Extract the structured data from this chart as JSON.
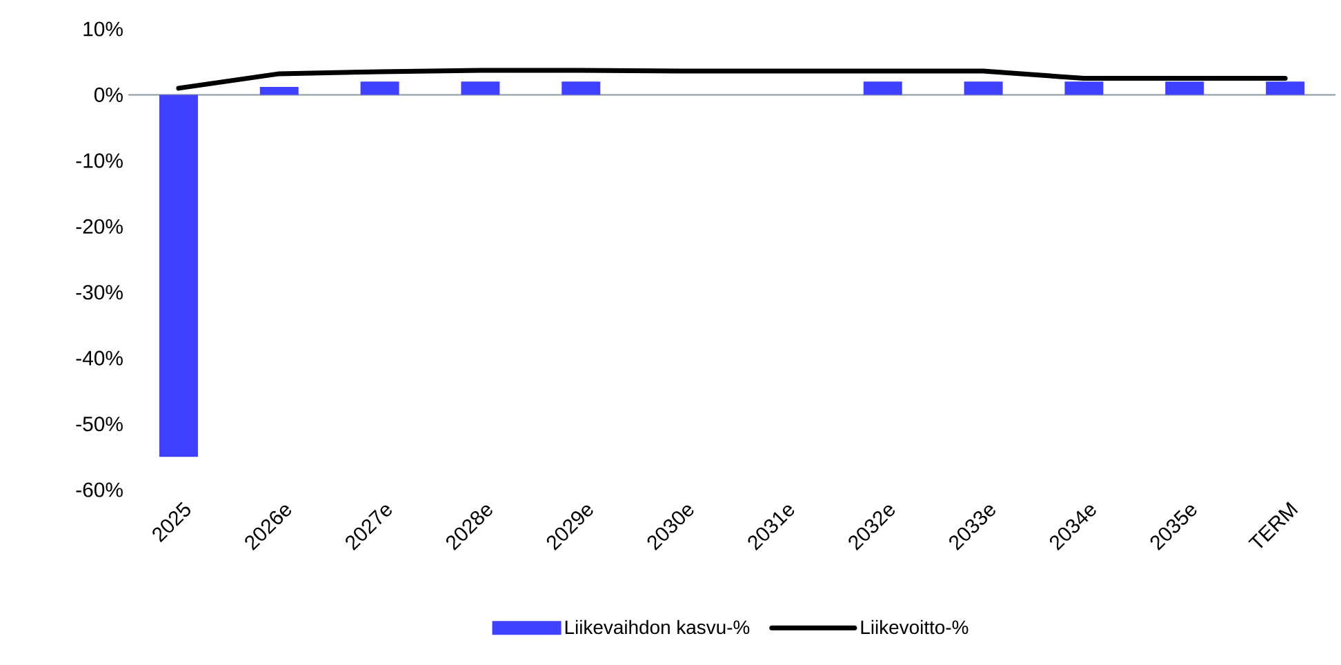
{
  "chart_data": {
    "type": "bar",
    "categories": [
      "2025",
      "2026e",
      "2027e",
      "2028e",
      "2029e",
      "2030e",
      "2031e",
      "2032e",
      "2033e",
      "2034e",
      "2035e",
      "TERM"
    ],
    "series": [
      {
        "name": "Liikevaihdon kasvu-%",
        "color": "#4040ff",
        "values": [
          -55,
          1.2,
          2,
          2,
          2,
          0,
          0,
          2,
          2,
          2,
          2,
          2
        ]
      },
      {
        "name": "Liikevoitto-%",
        "type": "line",
        "color": "#000000",
        "values": [
          1,
          3.2,
          3.5,
          3.7,
          3.7,
          3.6,
          3.6,
          3.6,
          3.6,
          2.5,
          2.5,
          2.5
        ]
      }
    ],
    "ylim": [
      -60,
      10
    ],
    "yticks": [
      {
        "value": -60,
        "label": "-60%"
      },
      {
        "value": -50,
        "label": "-50%"
      },
      {
        "value": -40,
        "label": "-40%"
      },
      {
        "value": -30,
        "label": "-30%"
      },
      {
        "value": -20,
        "label": "-20%"
      },
      {
        "value": -10,
        "label": "-10%"
      },
      {
        "value": 0,
        "label": "0%"
      },
      {
        "value": 10,
        "label": "10%"
      }
    ],
    "ref_lines": [
      {
        "axis": "y",
        "value": 0,
        "color": "#a0a8ac"
      }
    ],
    "grid": false,
    "legend": "bottom"
  }
}
